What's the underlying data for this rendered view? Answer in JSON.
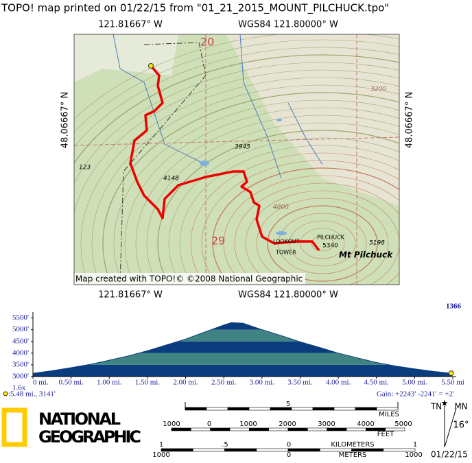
{
  "header": {
    "title": "TOPO! map printed on 01/22/15 from \"01_21_2015_MOUNT_PILCHUCK.tpo\""
  },
  "map": {
    "top_labels": [
      "121.81667° W",
      "WGS84 121.80000° W"
    ],
    "bottom_labels": [
      "121.81667° W",
      "WGS84 121.80000° W"
    ],
    "left_label": "48.06667° N",
    "right_label": "48.06667° N",
    "features": [
      "20",
      "29",
      "3945",
      "4148",
      "4800",
      "3200",
      "123",
      "PILCHUCK",
      "5340",
      "LOOKOUT",
      "TOWER",
      "5198",
      "Mt Pilchuck"
    ],
    "credit": "Map created with TOPO!© ©2008 National Geographic"
  },
  "chart_data": {
    "type": "area",
    "x": [
      0,
      0.25,
      0.5,
      0.75,
      1.0,
      1.25,
      1.5,
      1.75,
      2.0,
      2.25,
      2.5,
      2.6,
      2.75,
      3.0,
      3.25,
      3.5,
      3.75,
      4.0,
      4.25,
      4.5,
      4.75,
      5.0,
      5.25,
      5.48
    ],
    "values": [
      3140,
      3250,
      3380,
      3520,
      3700,
      3880,
      4100,
      4350,
      4600,
      4900,
      5200,
      5300,
      5280,
      5000,
      4750,
      4480,
      4250,
      4000,
      3800,
      3600,
      3450,
      3330,
      3220,
      3141
    ],
    "xlim": [
      0,
      5.5
    ],
    "ylim": [
      3000,
      5750
    ],
    "xticks": [
      {
        "value": 0,
        "label": "0 mi."
      },
      {
        "value": 0.5,
        "label": "0.50 mi."
      },
      {
        "value": 1,
        "label": "1.00 mi."
      },
      {
        "value": 1.5,
        "label": "1.50 mi."
      },
      {
        "value": 2,
        "label": "2.00 mi."
      },
      {
        "value": 2.5,
        "label": "2.50 mi."
      },
      {
        "value": 3,
        "label": "3.00 mi."
      },
      {
        "value": 3.5,
        "label": "3.50 mi."
      },
      {
        "value": 4,
        "label": "4.00 mi."
      },
      {
        "value": 4.5,
        "label": "4.50 mi."
      },
      {
        "value": 5,
        "label": "5.00 mi."
      },
      {
        "value": 5.5,
        "label": "5.50 mi"
      }
    ],
    "yticks": [
      {
        "value": 3000,
        "label": "3000'"
      },
      {
        "value": 3500,
        "label": "3500'"
      },
      {
        "value": 4000,
        "label": "4000'"
      },
      {
        "value": 4500,
        "label": "4500'"
      },
      {
        "value": 5000,
        "label": "5000'"
      },
      {
        "value": 5500,
        "label": "5500'"
      }
    ],
    "band_colors": [
      "#0b3d7e",
      "#3f8483"
    ],
    "id_label": "1366",
    "zoom_label": "1.6x",
    "marker_label": ":5.48 mi., 3141'",
    "gain_label": "Gain: +2243' -2241' = +2'"
  },
  "footer": {
    "logo": [
      "NATIONAL",
      "GEOGRAPHIC"
    ],
    "miles": {
      "labels": [
        "5"
      ],
      "unit": "MILES"
    },
    "feet": {
      "labels": [
        "1000",
        "0",
        "1000",
        "2000",
        "3000",
        "4000",
        "5000"
      ],
      "unit": "FEET"
    },
    "kilometers": {
      "labels": [
        "1",
        ".5",
        "0",
        "1"
      ],
      "unit": "KILOMETERS"
    },
    "meters": {
      "labels": [
        "1000",
        "0",
        "1000"
      ],
      "unit": "METERS"
    },
    "north": {
      "tn": "TN",
      "mn": "MN",
      "declination": "16°",
      "date": "01/22/15"
    }
  }
}
